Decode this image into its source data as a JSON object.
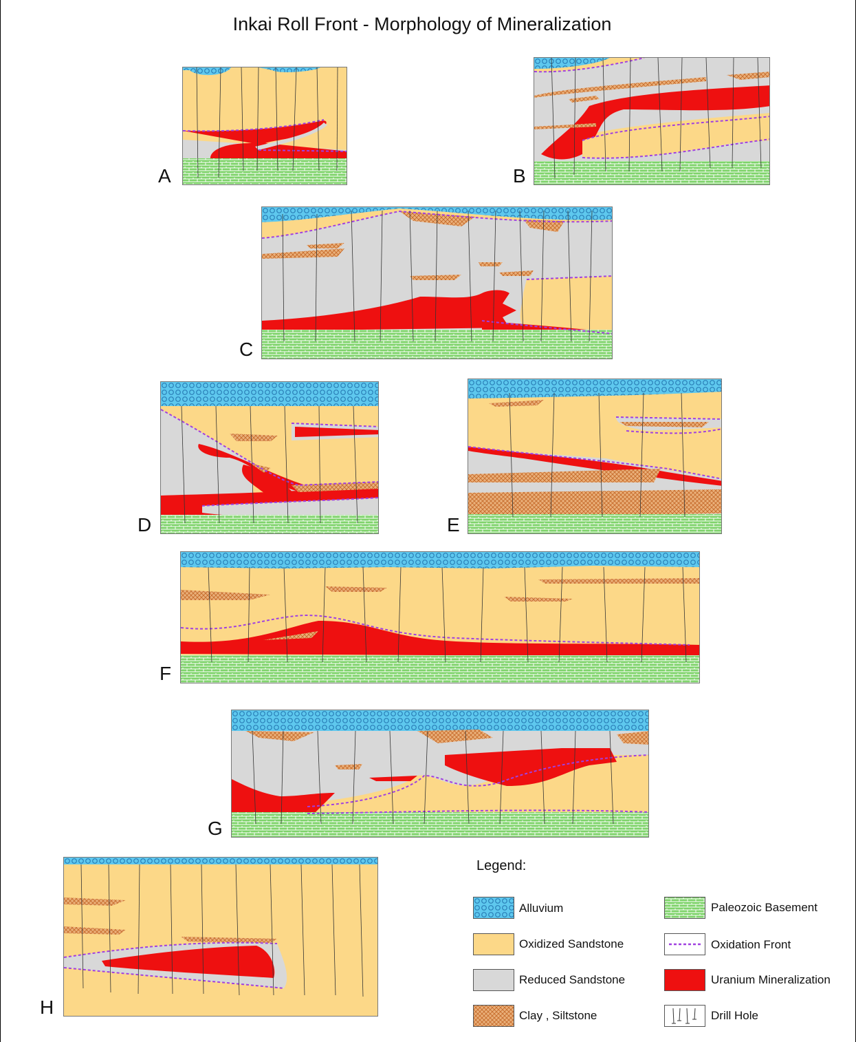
{
  "title": "Inkai Roll Front - Morphology of Mineralization",
  "panels": [
    {
      "label": "A"
    },
    {
      "label": "B"
    },
    {
      "label": "C"
    },
    {
      "label": "D"
    },
    {
      "label": "E"
    },
    {
      "label": "F"
    },
    {
      "label": "G"
    },
    {
      "label": "H"
    }
  ],
  "legend": {
    "title": "Legend:",
    "items": [
      {
        "label": "Alluvium",
        "icon": "alluvium-swatch"
      },
      {
        "label": "Oxidized Sandstone",
        "icon": "oxidized-sandstone-swatch"
      },
      {
        "label": "Reduced Sandstone",
        "icon": "reduced-sandstone-swatch"
      },
      {
        "label": "Clay , Siltstone",
        "icon": "clay-siltstone-swatch"
      },
      {
        "label": "Paleozoic Basement",
        "icon": "paleozoic-basement-swatch"
      },
      {
        "label": "Oxidation Front",
        "icon": "oxidation-front-swatch"
      },
      {
        "label": "Uranium Mineralization",
        "icon": "uranium-mineralization-swatch"
      },
      {
        "label": "Drill Hole",
        "icon": "drill-hole-swatch"
      }
    ]
  },
  "colors": {
    "alluvium": "#5ec8ee",
    "oxidized": "#fcd888",
    "reduced": "#d8d8d8",
    "clay": "#e8a060",
    "basement": "#7ed36a",
    "front": "#a040e0",
    "uranium": "#ee1010"
  }
}
